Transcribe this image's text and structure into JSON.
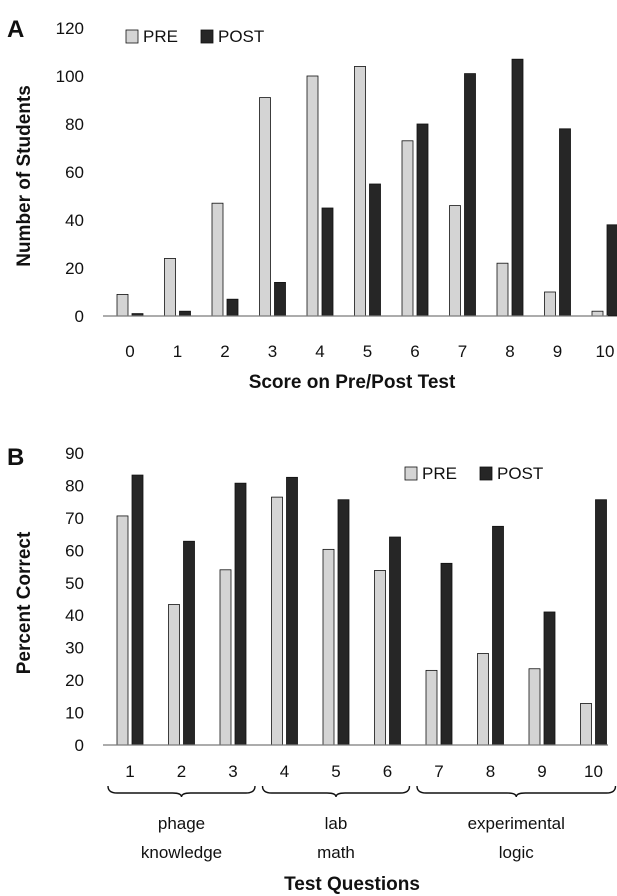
{
  "colors": {
    "pre": "#d4d4d4",
    "post": "#262626",
    "outline": "#111111",
    "axis": "#7a7a7a"
  },
  "chart_data": [
    {
      "type": "bar",
      "panel": "A",
      "xlabel": "Score on Pre/Post Test",
      "ylabel": "Number of Students",
      "categories": [
        "0",
        "1",
        "2",
        "3",
        "4",
        "5",
        "6",
        "7",
        "8",
        "9",
        "10"
      ],
      "series": [
        {
          "name": "PRE",
          "values": [
            9,
            24,
            47,
            91,
            100,
            104,
            73,
            46,
            22,
            10,
            2
          ]
        },
        {
          "name": "POST",
          "values": [
            1,
            2,
            7,
            14,
            45,
            55,
            80,
            101,
            107,
            78,
            38
          ]
        }
      ],
      "ylim": [
        0,
        120
      ],
      "yticks": [
        "0",
        "20",
        "40",
        "60",
        "80",
        "100",
        "120"
      ],
      "legend": "top-left",
      "grid": false
    },
    {
      "type": "bar",
      "panel": "B",
      "xlabel": "Test Questions",
      "ylabel": "Percent Correct",
      "categories": [
        "1",
        "2",
        "3",
        "4",
        "5",
        "6",
        "7",
        "8",
        "9",
        "10"
      ],
      "series": [
        {
          "name": "PRE",
          "values": [
            70.6,
            43.3,
            54.0,
            76.4,
            60.3,
            53.8,
            23.0,
            28.2,
            23.5,
            12.8
          ]
        },
        {
          "name": "POST",
          "values": [
            83.2,
            62.8,
            80.7,
            82.5,
            75.6,
            64.1,
            56.0,
            67.4,
            41.0,
            75.6
          ]
        }
      ],
      "ylim": [
        0,
        90
      ],
      "yticks": [
        "0",
        "10",
        "20",
        "30",
        "40",
        "50",
        "60",
        "70",
        "80",
        "90"
      ],
      "groups": [
        {
          "lines": [
            "phage",
            "knowledge"
          ]
        },
        {
          "lines": [
            "lab",
            "math"
          ]
        },
        {
          "lines": [
            "experimental",
            "logic"
          ]
        }
      ],
      "legend": "top-right",
      "grid": false
    }
  ]
}
